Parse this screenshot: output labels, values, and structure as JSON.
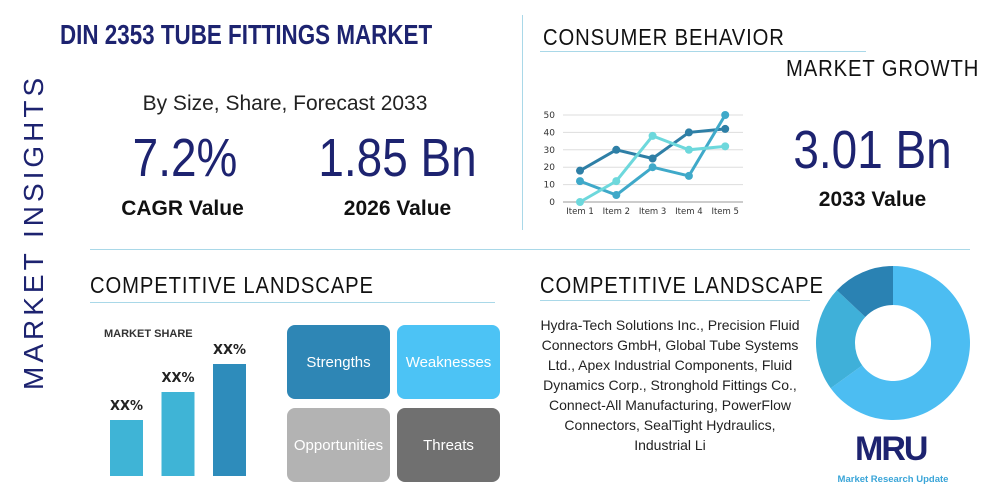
{
  "header": {
    "title": "DIN 2353 TUBE FITTINGS MARKET",
    "side_label": "MARKET INSIGHTS"
  },
  "summary": {
    "subtitle": "By Size, Share, Forecast 2033",
    "cagr": "7.2%",
    "cagr_label": "CAGR Value",
    "value_2026": "1.85 Bn",
    "value_2026_label": "2026 Value",
    "value_2033": "3.01 Bn",
    "value_2033_label": "2033 Value"
  },
  "consumer": {
    "title": "CONSUMER BEHAVIOR",
    "growth_title": "MARKET GROWTH"
  },
  "competitive_left": {
    "title": "COMPETITIVE LANDSCAPE",
    "market_share_label": "MARKET SHARE"
  },
  "swot": {
    "strengths": "Strengths",
    "weaknesses": "Weaknesses",
    "opportunities": "Opportunities",
    "threats": "Threats"
  },
  "competitive_right": {
    "title": "COMPETITIVE LANDSCAPE",
    "companies": "Hydra-Tech Solutions Inc., Precision Fluid Connectors GmbH, Global Tube Systems Ltd., Apex Industrial Components, Fluid Dynamics Corp., Stronghold Fittings Co., Connect-All Manufacturing, PowerFlow Connectors, SealTight Hydraulics, Industrial Li"
  },
  "logo": {
    "text": "MRU",
    "tagline": "Market Research Update"
  },
  "colors": {
    "navy": "#1d2370",
    "dark_blue": "#2e86b5",
    "mid_blue": "#3fb4d6",
    "light_blue": "#4cc3f5",
    "teal_light": "#6dd8dc",
    "gray_light": "#b3b3b3",
    "gray_dark": "#707070"
  },
  "chart_data": [
    {
      "type": "line",
      "categories": [
        "Item 1",
        "Item 2",
        "Item 3",
        "Item 4",
        "Item 5"
      ],
      "ylim": [
        0,
        50
      ],
      "yticks": [
        "0",
        "10",
        "20",
        "30",
        "40",
        "50"
      ],
      "grid": true,
      "series": [
        {
          "values": [
            18,
            30,
            25,
            40,
            42
          ],
          "color": "#2e7fa6"
        },
        {
          "values": [
            12,
            4,
            20,
            15,
            50
          ],
          "color": "#3fa9c9"
        },
        {
          "values": [
            0,
            12,
            38,
            30,
            32
          ],
          "color": "#6dd8dc"
        }
      ]
    },
    {
      "type": "bar",
      "title": "MARKET SHARE",
      "categories": [
        "",
        "",
        ""
      ],
      "values": [
        50,
        75,
        100
      ],
      "data_labels": [
        "XX%",
        "XX%",
        "XX%"
      ],
      "colors": [
        "#3fb4d6",
        "#3fb4d6",
        "#2e8cbb"
      ]
    },
    {
      "type": "pie",
      "donut": true,
      "values": [
        65,
        22,
        13
      ],
      "colors": [
        "#4cbdf2",
        "#3fb0d9",
        "#2a82b3"
      ]
    }
  ]
}
